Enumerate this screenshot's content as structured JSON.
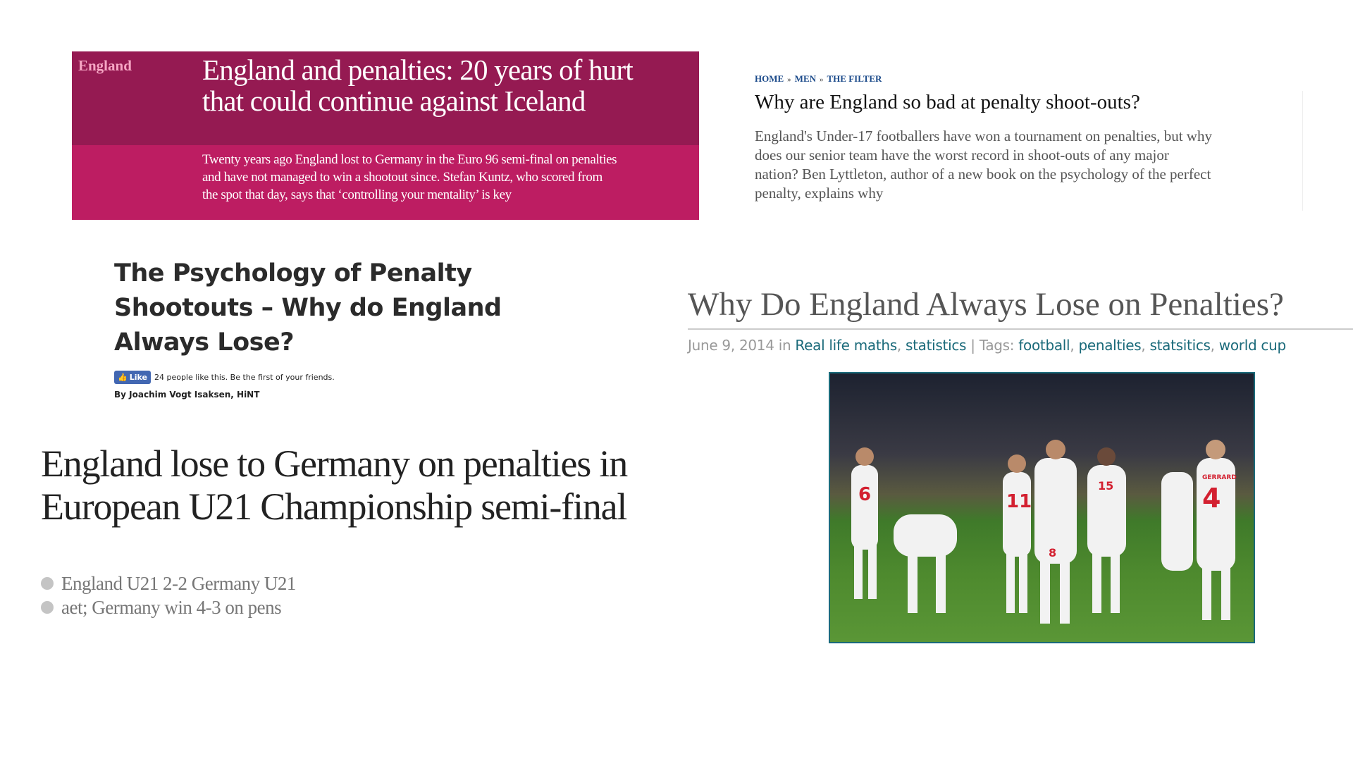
{
  "guardian_card": {
    "kicker": "England",
    "headline_lines": [
      "England and penalties: 20 years of hurt",
      "that could continue against Iceland"
    ],
    "standfirst_lines": [
      "Twenty years ago England lost to Germany in the Euro 96 semi-final on penalties",
      "and have not managed to win a shootout since. Stefan Kuntz, who scored from",
      "the spot that day, says that ‘controlling your mentality’ is key"
    ],
    "colors": {
      "top": "#951a52",
      "bottom": "#bd1d62",
      "kicker": "#f6a6c4"
    }
  },
  "telegraph": {
    "breadcrumb": [
      "HOME",
      "MEN",
      "THE FILTER"
    ],
    "breadcrumb_sep": "»",
    "title": "Why are England so bad at penalty shoot-outs?",
    "body_lines": [
      "England's Under-17 footballers have won a tournament on penalties, but why",
      "does our senior team have the worst record in shoot-outs of any major",
      "nation? Ben Lyttleton, author of a new book on the psychology of the perfect",
      "penalty, explains why"
    ]
  },
  "hint": {
    "title_lines": [
      "The Psychology of Penalty",
      "Shootouts – Why do England",
      "Always Lose?"
    ],
    "like_label": "Like",
    "like_text": "24 people like this. Be the first of your friends.",
    "byline": "By Joachim Vogt Isaksen, HiNT"
  },
  "guardian_u21": {
    "headline_lines": [
      "England lose to Germany on penalties in",
      "European U21 Championship semi-final"
    ],
    "bullets": [
      "England U21 2-2 Germany U21",
      "aet; Germany win 4-3 on pens"
    ]
  },
  "maths_blog": {
    "title": "Why Do England Always Lose on Penalties?",
    "date": "June 9, 2014",
    "in_word": " in ",
    "categories": [
      "Real life maths",
      "statistics"
    ],
    "tags_label": " | Tags: ",
    "tags": [
      "football",
      "penalties",
      "statsitics",
      "world cup"
    ],
    "link_color": "#1a6a7a",
    "photo_numbers": [
      "6",
      "11",
      "8",
      "15",
      "4"
    ],
    "photo_name": "GERRARD"
  }
}
